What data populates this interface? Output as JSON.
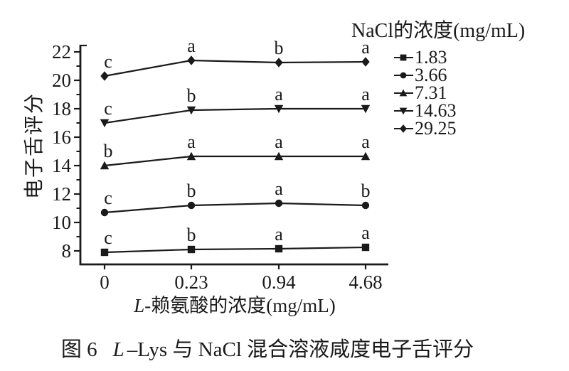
{
  "caption": {
    "figure_label": "图 6",
    "title_italic": "L",
    "title_rest": "–Lys 与 NaCl 混合溶液咸度电子舌评分"
  },
  "chart_data": {
    "type": "line",
    "title": "",
    "xlabel": "L-赖氨酸的浓度(mg/mL)",
    "xlabel_parts": {
      "italic": "L",
      "rest": "-赖氨酸的浓度(mg/mL)"
    },
    "ylabel": "电子舌评分",
    "x_tick_labels": [
      "0",
      "0.23",
      "0.94",
      "4.68"
    ],
    "y_ticks": [
      8,
      10,
      12,
      14,
      16,
      18,
      20,
      22
    ],
    "y_minor_ticks": [
      9,
      11,
      13,
      15,
      17,
      19,
      21
    ],
    "ylim": [
      7.05,
      22.45
    ],
    "grid": false,
    "legend": {
      "title": "NaCl的浓度(mg/mL)",
      "position": "top-right",
      "entries": [
        {
          "label": "1.83",
          "marker": "square"
        },
        {
          "label": "3.66",
          "marker": "circle"
        },
        {
          "label": "7.31",
          "marker": "triangle-up"
        },
        {
          "label": "14.63",
          "marker": "triangle-down"
        },
        {
          "label": "29.25",
          "marker": "diamond"
        }
      ]
    },
    "series": [
      {
        "name": "1.83",
        "marker": "square",
        "values": [
          7.9,
          8.1,
          8.15,
          8.25
        ],
        "point_labels": [
          "c",
          "b",
          "a",
          "a"
        ]
      },
      {
        "name": "3.66",
        "marker": "circle",
        "values": [
          10.7,
          11.2,
          11.35,
          11.2
        ],
        "point_labels": [
          "c",
          "b",
          "a",
          "b"
        ]
      },
      {
        "name": "7.31",
        "marker": "triangle-up",
        "values": [
          14.0,
          14.65,
          14.65,
          14.65
        ],
        "point_labels": [
          "b",
          "a",
          "a",
          "a"
        ]
      },
      {
        "name": "14.63",
        "marker": "triangle-down",
        "values": [
          17.0,
          17.9,
          18.0,
          18.0
        ],
        "point_labels": [
          "c",
          "b",
          "a",
          "a"
        ]
      },
      {
        "name": "29.25",
        "marker": "diamond",
        "values": [
          20.3,
          21.4,
          21.25,
          21.3
        ],
        "point_labels": [
          "c",
          "a",
          "b",
          "a"
        ]
      }
    ],
    "color": "#1a1a1a",
    "background": "#ffffff"
  }
}
